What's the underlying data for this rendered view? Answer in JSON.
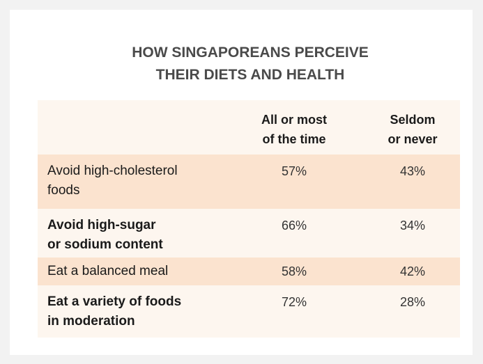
{
  "chart_data": {
    "type": "table",
    "title": "HOW SINGAPOREANS PERCEIVE THEIR DIETS AND HEALTH",
    "columns": [
      "All or most of the time",
      "Seldom or never"
    ],
    "rows": [
      {
        "label": "Avoid high-cholesterol foods",
        "values": [
          "57%",
          "43%"
        ]
      },
      {
        "label": "Avoid high-sugar or sodium content",
        "values": [
          "66%",
          "34%"
        ]
      },
      {
        "label": "Eat a balanced meal",
        "values": [
          "58%",
          "42%"
        ]
      },
      {
        "label": "Eat a variety of foods in moderation",
        "values": [
          "72%",
          "28%"
        ]
      }
    ]
  },
  "display": {
    "title_line1": "HOW SINGAPOREANS PERCEIVE",
    "title_line2": "THEIR DIETS AND HEALTH",
    "col1_line1": "All or most",
    "col1_line2": "of the time",
    "col2_line1": "Seldom",
    "col2_line2": "or never",
    "row1_line1": "Avoid high-cholesterol",
    "row1_line2": "foods",
    "row2_line1": "Avoid high-sugar",
    "row2_line2": "or sodium content",
    "row3_line1": "Eat a balanced meal",
    "row4_line1": "Eat a variety of foods",
    "row4_line2": "in moderation"
  },
  "colors": {
    "background": "#f2f2f2",
    "table_light": "#fdf6ef",
    "table_shaded": "#fbe3cf",
    "title_text": "#4a4a4a"
  }
}
